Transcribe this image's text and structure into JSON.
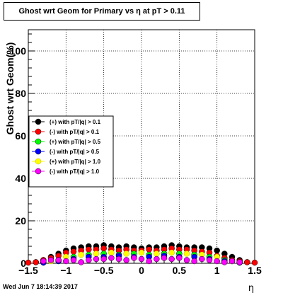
{
  "title": "Ghost wrt Geom for Primary vs   η at pT > 0.11",
  "footer": "Wed Jun  7 18:14:39 2017",
  "chart_data": {
    "type": "scatter",
    "title": "Ghost wrt Geom for Primary vs   η at pT > 0.11",
    "xlabel": "η",
    "ylabel": "Ghost wrt Geom(%)",
    "xlim": [
      -1.5,
      1.5
    ],
    "ylim": [
      0,
      110
    ],
    "xticks": [
      -1.5,
      -1,
      -0.5,
      0,
      0.5,
      1,
      1.5
    ],
    "xtick_labels": [
      "−1.5",
      "−1",
      "−0.5",
      "0",
      "0.5",
      "1",
      "1.5"
    ],
    "yticks": [
      0,
      20,
      40,
      60,
      80,
      100
    ],
    "ytick_labels": [
      "0",
      "20",
      "40",
      "60",
      "80",
      "100"
    ],
    "grid": true,
    "legend_position": "middle-left",
    "series": [
      {
        "name": "(+) with pT/|q| > 0.1",
        "color": "#000000",
        "x": [
          -1.4,
          -1.3,
          -1.2,
          -1.1,
          -1.0,
          -0.9,
          -0.8,
          -0.7,
          -0.6,
          -0.5,
          -0.4,
          -0.3,
          -0.2,
          -0.1,
          0.0,
          0.1,
          0.2,
          0.3,
          0.4,
          0.5,
          0.6,
          0.7,
          0.8,
          0.9,
          1.0,
          1.1,
          1.2,
          1.3,
          1.4
        ],
        "y": [
          0.5,
          1.5,
          3.0,
          4.5,
          6.0,
          7.0,
          7.5,
          8.0,
          8.0,
          8.5,
          8.0,
          7.5,
          8.0,
          7.5,
          7.0,
          7.5,
          7.5,
          8.0,
          8.5,
          8.0,
          7.5,
          7.5,
          7.5,
          7.0,
          6.0,
          4.5,
          3.0,
          1.5,
          0.5
        ]
      },
      {
        "name": "(-) with pT/|q| > 0.1",
        "color": "#ff0000",
        "x": [
          -1.5,
          -1.4,
          -1.3,
          -1.2,
          -1.1,
          -1.0,
          -0.9,
          -0.8,
          -0.7,
          -0.6,
          -0.5,
          -0.4,
          -0.3,
          -0.2,
          -0.1,
          0.0,
          0.1,
          0.2,
          0.3,
          0.4,
          0.5,
          0.6,
          0.7,
          0.8,
          0.9,
          1.0,
          1.1,
          1.2,
          1.3,
          1.4,
          1.5
        ],
        "y": [
          0.3,
          0.5,
          1.5,
          2.5,
          3.5,
          5.0,
          5.5,
          6.0,
          6.5,
          6.5,
          7.0,
          6.5,
          6.0,
          6.5,
          6.0,
          6.0,
          6.5,
          6.0,
          6.5,
          7.0,
          6.5,
          6.5,
          6.0,
          5.5,
          5.0,
          3.5,
          2.5,
          1.5,
          1.0,
          0.5,
          0.3
        ]
      },
      {
        "name": "(+) with pT/|q| > 0.5",
        "color": "#00ff00",
        "x": [
          -1.3,
          -1.1,
          -0.9,
          -0.7,
          -0.5,
          -0.3,
          -0.1,
          0.1,
          0.3,
          0.5,
          0.7,
          0.9,
          1.1,
          1.3
        ],
        "y": [
          0.5,
          1.5,
          3.0,
          4.0,
          4.5,
          4.0,
          4.5,
          4.0,
          4.5,
          4.5,
          4.0,
          3.0,
          1.5,
          0.5
        ]
      },
      {
        "name": "(-) with pT/|q| > 0.5",
        "color": "#0000ff",
        "x": [
          -1.3,
          -1.1,
          -0.9,
          -0.7,
          -0.5,
          -0.3,
          -0.1,
          0.1,
          0.3,
          0.5,
          0.7,
          0.9,
          1.1,
          1.3
        ],
        "y": [
          0.3,
          1.0,
          2.0,
          3.0,
          3.0,
          3.5,
          3.0,
          3.0,
          3.5,
          3.0,
          3.0,
          2.0,
          1.0,
          0.3
        ]
      },
      {
        "name": "(+) with pT/|q| > 1.0",
        "color": "#ffff00",
        "x": [
          -1.2,
          -1.0,
          -0.8,
          -0.6,
          -0.4,
          -0.2,
          0.0,
          0.2,
          0.4,
          0.6,
          0.8,
          1.0,
          1.2
        ],
        "y": [
          1.0,
          3.0,
          4.0,
          4.5,
          5.0,
          4.5,
          5.0,
          4.5,
          5.0,
          4.5,
          4.0,
          3.0,
          1.0
        ]
      },
      {
        "name": "(-) with pT/|q| > 1.0",
        "color": "#ff00ff",
        "x": [
          -1.3,
          -1.2,
          -1.1,
          -1.0,
          -0.9,
          -0.8,
          -0.7,
          -0.6,
          -0.5,
          -0.4,
          -0.3,
          -0.2,
          -0.1,
          0.0,
          0.1,
          0.2,
          0.3,
          0.4,
          0.5,
          0.6,
          0.7,
          0.8,
          0.9,
          1.0,
          1.1,
          1.2,
          1.3
        ],
        "y": [
          1.0,
          1.5,
          1.5,
          1.0,
          1.5,
          0.5,
          1.5,
          2.0,
          2.0,
          2.5,
          2.0,
          1.5,
          2.5,
          2.0,
          1.0,
          2.0,
          2.5,
          2.0,
          2.5,
          1.5,
          1.0,
          2.0,
          1.5,
          1.0,
          0.5,
          1.0,
          0.5
        ]
      }
    ]
  }
}
